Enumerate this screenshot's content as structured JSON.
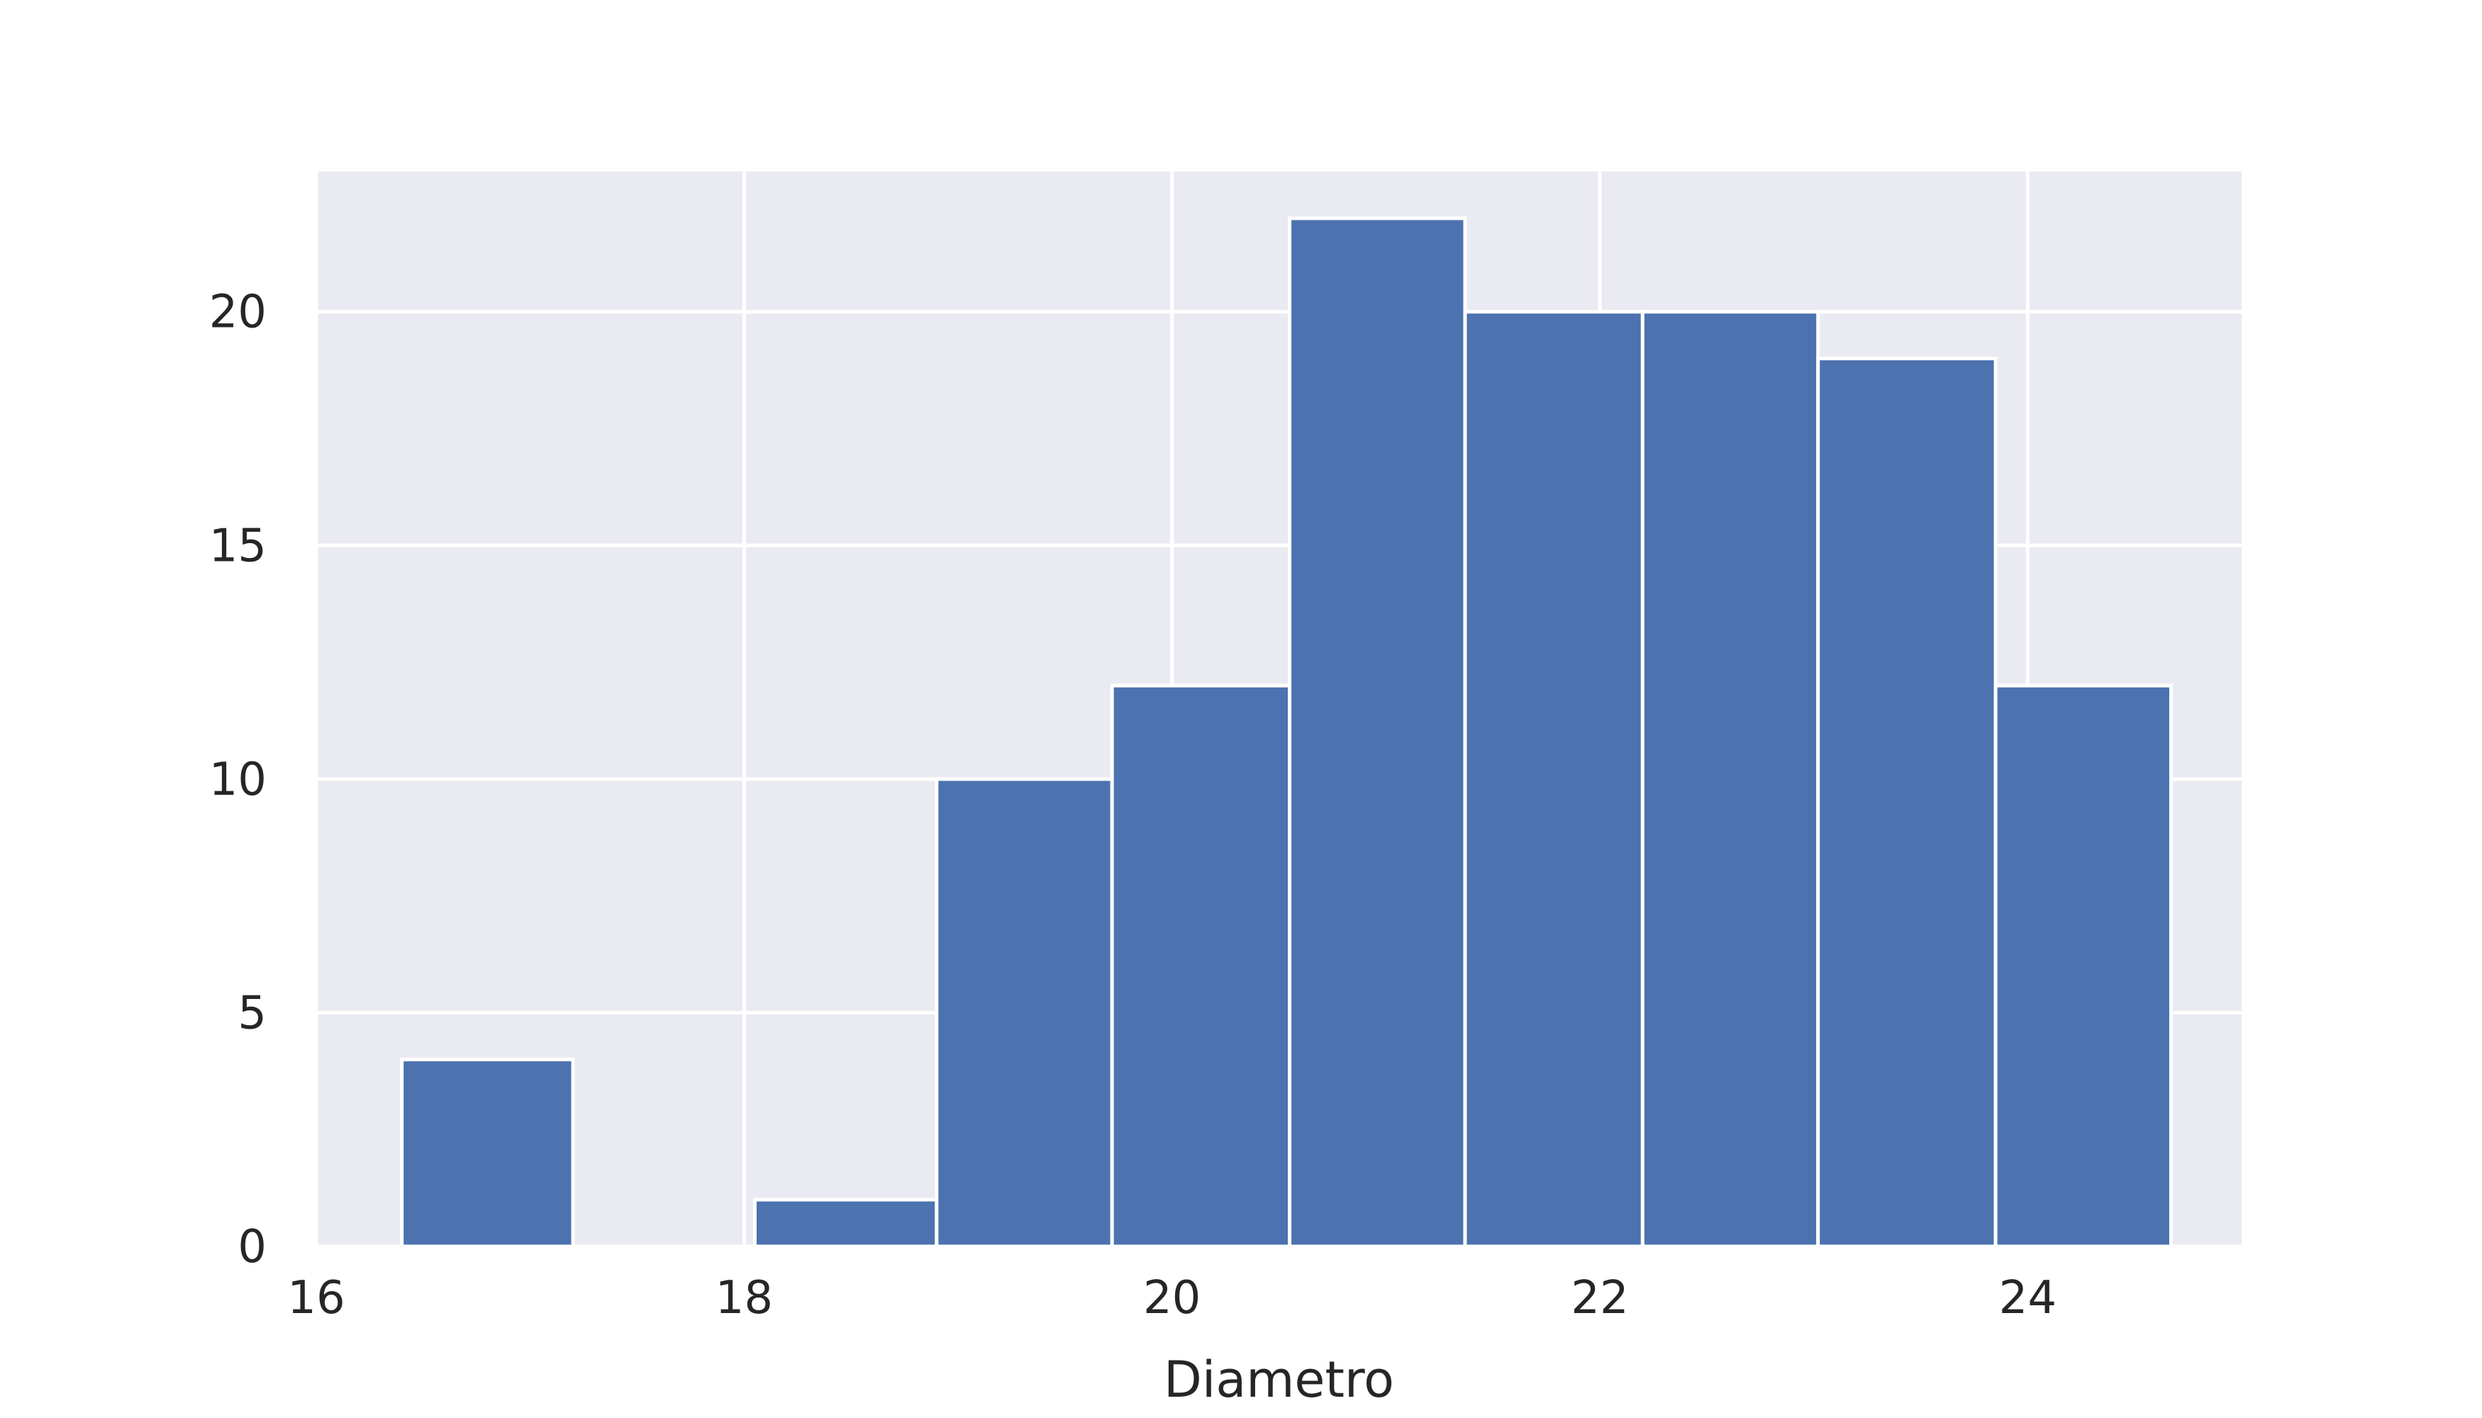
{
  "chart_data": {
    "type": "bar",
    "title": "",
    "xlabel": "Diametro",
    "ylabel": "",
    "xlim": [
      16,
      25
    ],
    "ylim": [
      0,
      23
    ],
    "xticks": [
      "16",
      "18",
      "20",
      "22",
      "24"
    ],
    "yticks": [
      "0",
      "5",
      "10",
      "15",
      "20"
    ],
    "grid": true,
    "bar_color": "#4c72b0",
    "background_color": "#eaeaf2",
    "grid_color": "#ffffff",
    "bins": [
      {
        "x0": 16.4,
        "x1": 17.2,
        "count": 4
      },
      {
        "x0": 17.2,
        "x1": 18.05,
        "count": 0
      },
      {
        "x0": 18.05,
        "x1": 18.9,
        "count": 1
      },
      {
        "x0": 18.9,
        "x1": 19.72,
        "count": 10
      },
      {
        "x0": 19.72,
        "x1": 20.55,
        "count": 12
      },
      {
        "x0": 20.55,
        "x1": 21.37,
        "count": 22
      },
      {
        "x0": 21.37,
        "x1": 22.2,
        "count": 20
      },
      {
        "x0": 22.2,
        "x1": 23.02,
        "count": 20
      },
      {
        "x0": 23.02,
        "x1": 23.85,
        "count": 19
      },
      {
        "x0": 23.85,
        "x1": 24.67,
        "count": 12
      }
    ]
  }
}
